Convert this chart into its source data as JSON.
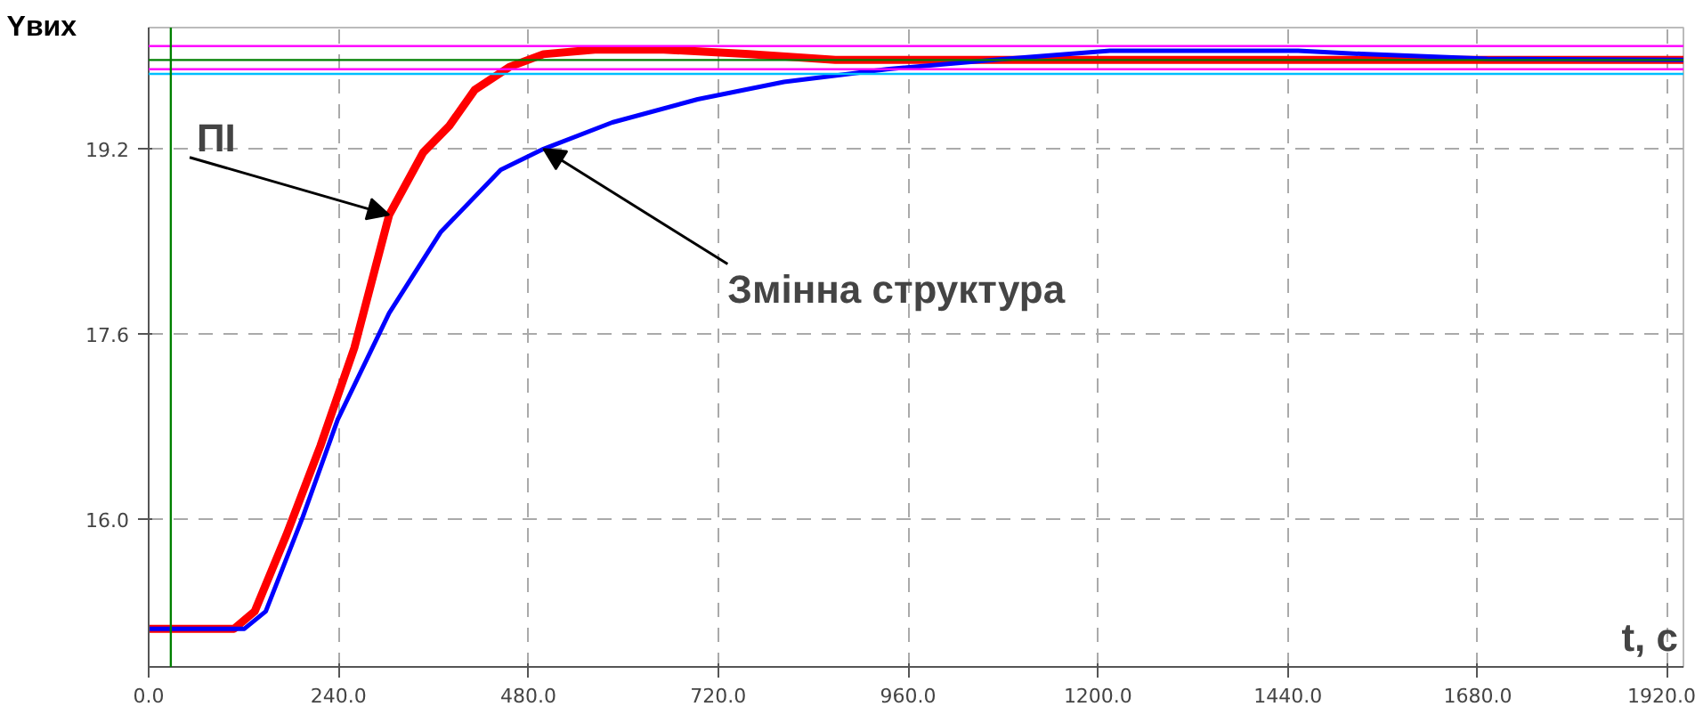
{
  "chart_data": {
    "type": "line",
    "xlabel": "t, c",
    "ylabel": "Yвих",
    "xlim": [
      0,
      1940
    ],
    "ylim": [
      14.72,
      20.25
    ],
    "xticks": [
      {
        "value": 0,
        "label": "0.0"
      },
      {
        "value": 240,
        "label": "240.0"
      },
      {
        "value": 480,
        "label": "480.0"
      },
      {
        "value": 720,
        "label": "720.0"
      },
      {
        "value": 960,
        "label": "960.0"
      },
      {
        "value": 1200,
        "label": "1200.0"
      },
      {
        "value": 1440,
        "label": "1440.0"
      },
      {
        "value": 1680,
        "label": "1680.0"
      },
      {
        "value": 1920,
        "label": "1920.0"
      }
    ],
    "yticks": [
      {
        "value": 16.0,
        "label": "16.0"
      },
      {
        "value": 17.6,
        "label": "17.6"
      },
      {
        "value": 19.2,
        "label": "19.2"
      }
    ],
    "grid": true,
    "line_style": "solid",
    "marker": "none",
    "series": [
      {
        "color": "#ff0000",
        "x": [
          0,
          108,
          134,
          174,
          217,
          260,
          304,
          347,
          380,
          412,
          456,
          499,
          564,
          651,
          759,
          868,
          1193,
          1940
        ],
        "values": [
          15.05,
          15.05,
          15.2,
          15.86,
          16.63,
          17.48,
          18.63,
          19.17,
          19.4,
          19.71,
          19.91,
          20.02,
          20.06,
          20.06,
          20.02,
          19.97,
          19.97,
          19.97
        ]
      },
      {
        "color": "#0000ff",
        "x": [
          0,
          121,
          148,
          195,
          239,
          304,
          369,
          445,
          499,
          586,
          694,
          803,
          933,
          1085,
          1215,
          1410,
          1453,
          1540,
          1692,
          1940
        ],
        "values": [
          15.05,
          15.05,
          15.2,
          16.02,
          16.86,
          17.78,
          18.48,
          19.02,
          19.2,
          19.43,
          19.63,
          19.78,
          19.89,
          19.98,
          20.05,
          20.05,
          20.05,
          20.02,
          19.98,
          19.97
        ]
      }
    ],
    "ref_lines": [
      {
        "axis": "y",
        "value": 20.09,
        "color": "#ff00ff"
      },
      {
        "axis": "y",
        "value": 19.97,
        "color": "#008000"
      },
      {
        "axis": "y",
        "value": 19.89,
        "color": "#ff00ff"
      },
      {
        "axis": "y",
        "value": 19.85,
        "color": "#00bfff"
      },
      {
        "axis": "x",
        "value": 28,
        "color": "#008000"
      }
    ],
    "annotations": [
      {
        "text": "ПІ",
        "x": 304,
        "y": 18.63
      },
      {
        "text": "Змінна структура",
        "x": 499,
        "y": 19.2
      }
    ]
  }
}
